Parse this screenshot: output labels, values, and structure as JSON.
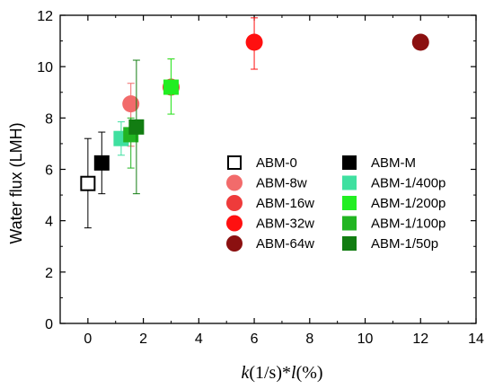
{
  "chart_data": {
    "type": "scatter",
    "xlabel": {
      "k": "k",
      "mid": "(1/s)*",
      "l": "l",
      "end": "(%)"
    },
    "ylabel": "Water flux (LMH)",
    "xlim": [
      -1,
      14
    ],
    "ylim": [
      0,
      12
    ],
    "xticks": [
      0,
      2,
      4,
      6,
      8,
      10,
      12,
      14
    ],
    "yticks": [
      0,
      2,
      4,
      6,
      8,
      10,
      12
    ],
    "x_tick_labels": [
      "0",
      "2",
      "4",
      "6",
      "8",
      "10",
      "12",
      "14"
    ],
    "y_tick_labels": [
      "0",
      "2",
      "4",
      "6",
      "8",
      "10",
      "12"
    ],
    "grid": false,
    "legend_position": "center-right",
    "series": [
      {
        "name": "ABM-0",
        "marker": "square-open",
        "color": "#000000",
        "x": 0.0,
        "y": 5.45,
        "err": [
          3.72,
          7.2
        ]
      },
      {
        "name": "ABM-8w",
        "marker": "circle",
        "color": "#f26b6b",
        "x": 1.55,
        "y": 8.55,
        "err": [
          6.9,
          9.35
        ]
      },
      {
        "name": "ABM-16w",
        "marker": "circle",
        "color": "#ee3b3b",
        "x": 3.0,
        "y": 9.2,
        "err": [
          8.15,
          10.3
        ]
      },
      {
        "name": "ABM-32w",
        "marker": "circle",
        "color": "#ff1010",
        "x": 6.0,
        "y": 10.95,
        "err": [
          9.9,
          11.9
        ]
      },
      {
        "name": "ABM-64w",
        "marker": "circle",
        "color": "#8b1010",
        "x": 12.0,
        "y": 10.95,
        "err": null
      },
      {
        "name": "ABM-M",
        "marker": "square",
        "color": "#000000",
        "x": 0.5,
        "y": 6.25,
        "err": [
          5.05,
          7.45
        ]
      },
      {
        "name": "ABM-1/400p",
        "marker": "square",
        "color": "#3fe0a0",
        "x": 1.2,
        "y": 7.2,
        "err": [
          6.55,
          7.85
        ]
      },
      {
        "name": "ABM-1/200p",
        "marker": "square",
        "color": "#22ee22",
        "x": 3.0,
        "y": 9.2,
        "err": [
          8.15,
          10.3
        ]
      },
      {
        "name": "ABM-1/100p",
        "marker": "square",
        "color": "#22b522",
        "x": 1.55,
        "y": 7.35,
        "err": [
          6.05,
          8.0
        ]
      },
      {
        "name": "ABM-1/50p",
        "marker": "square",
        "color": "#127d12",
        "x": 1.75,
        "y": 7.65,
        "err": [
          5.05,
          10.25
        ]
      }
    ]
  }
}
